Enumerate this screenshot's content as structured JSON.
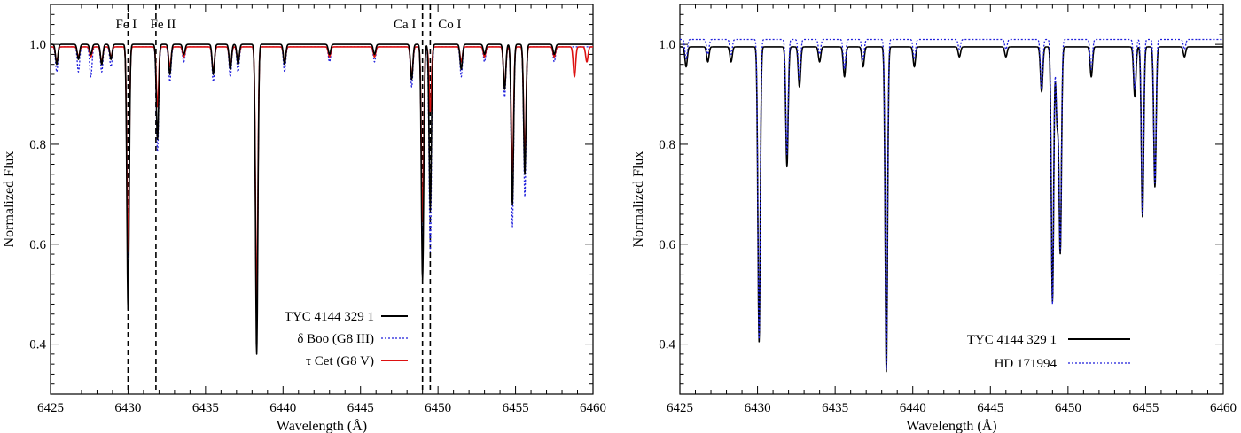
{
  "chart_data": [
    {
      "type": "line",
      "xlabel": "Wavelength (Å)",
      "ylabel": "Normalized Flux",
      "xlim": [
        6425,
        6460
      ],
      "ylim": [
        0.3,
        1.08
      ],
      "xticks": [
        6425,
        6430,
        6435,
        6440,
        6445,
        6450,
        6455,
        6460
      ],
      "yticks": [
        0.4,
        0.6,
        0.8,
        1.0
      ],
      "ytick_labels": [
        "0.4",
        "0.6",
        "0.8",
        "1.0"
      ],
      "line_markers": [
        {
          "x": 6430.0,
          "label": "Fe I"
        },
        {
          "x": 6431.8,
          "label": "Fe II"
        },
        {
          "x": 6449.0,
          "label": "Ca I"
        },
        {
          "x": 6449.5,
          "label": "Co I"
        }
      ],
      "series": [
        {
          "name": "TYC 4144 329 1",
          "color": "#000000",
          "style": "solid",
          "continuum": 1.0,
          "lines": [
            [
              6425.4,
              0.04
            ],
            [
              6426.8,
              0.03
            ],
            [
              6427.6,
              0.02
            ],
            [
              6428.3,
              0.04
            ],
            [
              6428.9,
              0.03
            ],
            [
              6430.0,
              0.53
            ],
            [
              6431.9,
              0.19
            ],
            [
              6432.7,
              0.06
            ],
            [
              6433.6,
              0.02
            ],
            [
              6435.5,
              0.06
            ],
            [
              6436.6,
              0.05
            ],
            [
              6437.1,
              0.04
            ],
            [
              6438.3,
              0.62
            ],
            [
              6440.1,
              0.04
            ],
            [
              6443.0,
              0.02
            ],
            [
              6445.9,
              0.02
            ],
            [
              6448.3,
              0.07
            ],
            [
              6449.0,
              0.47
            ],
            [
              6449.5,
              0.33
            ],
            [
              6451.5,
              0.05
            ],
            [
              6453.0,
              0.02
            ],
            [
              6454.3,
              0.09
            ],
            [
              6454.8,
              0.32
            ],
            [
              6455.6,
              0.26
            ],
            [
              6457.5,
              0.02
            ]
          ]
        },
        {
          "name": "δ Boo (G8 III)",
          "color": "#1f1fdb",
          "style": "dotted",
          "continuum": 0.995,
          "lines": [
            [
              6425.4,
              0.05
            ],
            [
              6426.8,
              0.05
            ],
            [
              6427.6,
              0.06
            ],
            [
              6428.3,
              0.05
            ],
            [
              6428.9,
              0.04
            ],
            [
              6430.0,
              0.43
            ],
            [
              6431.9,
              0.21
            ],
            [
              6432.7,
              0.07
            ],
            [
              6433.6,
              0.03
            ],
            [
              6435.5,
              0.07
            ],
            [
              6436.6,
              0.06
            ],
            [
              6437.1,
              0.05
            ],
            [
              6438.3,
              0.56
            ],
            [
              6440.1,
              0.05
            ],
            [
              6443.0,
              0.03
            ],
            [
              6445.9,
              0.03
            ],
            [
              6448.3,
              0.08
            ],
            [
              6449.0,
              0.41
            ],
            [
              6449.5,
              0.41
            ],
            [
              6451.5,
              0.06
            ],
            [
              6453.0,
              0.03
            ],
            [
              6454.3,
              0.1
            ],
            [
              6454.8,
              0.36
            ],
            [
              6455.6,
              0.3
            ],
            [
              6457.5,
              0.03
            ]
          ]
        },
        {
          "name": "τ Cet (G8 V)",
          "color": "#dd1111",
          "style": "solid",
          "continuum": 0.995,
          "lines": [
            [
              6425.4,
              0.03
            ],
            [
              6426.8,
              0.02
            ],
            [
              6427.6,
              0.02
            ],
            [
              6428.3,
              0.03
            ],
            [
              6428.9,
              0.02
            ],
            [
              6430.0,
              0.41
            ],
            [
              6431.9,
              0.12
            ],
            [
              6432.7,
              0.04
            ],
            [
              6433.6,
              0.02
            ],
            [
              6435.5,
              0.05
            ],
            [
              6436.6,
              0.04
            ],
            [
              6437.1,
              0.03
            ],
            [
              6438.3,
              0.52
            ],
            [
              6440.1,
              0.03
            ],
            [
              6443.0,
              0.02
            ],
            [
              6445.9,
              0.02
            ],
            [
              6448.3,
              0.06
            ],
            [
              6449.0,
              0.35
            ],
            [
              6449.5,
              0.13
            ],
            [
              6451.5,
              0.03
            ],
            [
              6453.0,
              0.02
            ],
            [
              6454.3,
              0.08
            ],
            [
              6454.8,
              0.25
            ],
            [
              6455.6,
              0.22
            ],
            [
              6457.5,
              0.02
            ],
            [
              6458.8,
              0.06
            ],
            [
              6459.6,
              0.03
            ]
          ]
        }
      ],
      "legend": {
        "position": "bottom-center",
        "entries": [
          "TYC 4144 329 1",
          "δ  Boo (G8 III)",
          "τ  Cet  (G8 V)"
        ]
      }
    },
    {
      "type": "line",
      "xlabel": "Wavelength (Å)",
      "ylabel": "Normalized Flux",
      "xlim": [
        6425,
        6460
      ],
      "ylim": [
        0.3,
        1.08
      ],
      "xticks": [
        6425,
        6430,
        6435,
        6440,
        6445,
        6450,
        6455,
        6460
      ],
      "yticks": [
        0.4,
        0.6,
        0.8,
        1.0
      ],
      "ytick_labels": [
        "0.4",
        "0.6",
        "0.8",
        "1.0"
      ],
      "line_markers": [],
      "series": [
        {
          "name": "TYC 4144 329 1",
          "color": "#000000",
          "style": "solid",
          "continuum": 0.995,
          "lines": [
            [
              6425.4,
              0.04
            ],
            [
              6426.8,
              0.03
            ],
            [
              6428.3,
              0.03
            ],
            [
              6430.1,
              0.59
            ],
            [
              6431.9,
              0.24
            ],
            [
              6432.7,
              0.08
            ],
            [
              6434.0,
              0.03
            ],
            [
              6435.6,
              0.06
            ],
            [
              6436.8,
              0.04
            ],
            [
              6438.3,
              0.65
            ],
            [
              6440.1,
              0.04
            ],
            [
              6443.0,
              0.02
            ],
            [
              6446.0,
              0.02
            ],
            [
              6448.3,
              0.09
            ],
            [
              6449.0,
              0.51
            ],
            [
              6449.3,
              0.15
            ],
            [
              6449.5,
              0.41
            ],
            [
              6451.5,
              0.06
            ],
            [
              6454.3,
              0.1
            ],
            [
              6454.8,
              0.34
            ],
            [
              6455.6,
              0.28
            ],
            [
              6457.5,
              0.02
            ]
          ]
        },
        {
          "name": "HD 171994",
          "color": "#1f1fdb",
          "style": "dotted",
          "continuum": 1.01,
          "lines": [
            [
              6425.4,
              0.04
            ],
            [
              6426.8,
              0.03
            ],
            [
              6428.3,
              0.03
            ],
            [
              6430.1,
              0.6
            ],
            [
              6431.9,
              0.23
            ],
            [
              6432.7,
              0.08
            ],
            [
              6434.0,
              0.03
            ],
            [
              6435.6,
              0.06
            ],
            [
              6436.8,
              0.04
            ],
            [
              6438.3,
              0.66
            ],
            [
              6440.1,
              0.04
            ],
            [
              6443.0,
              0.02
            ],
            [
              6446.0,
              0.02
            ],
            [
              6448.3,
              0.1
            ],
            [
              6449.0,
              0.53
            ],
            [
              6449.3,
              0.16
            ],
            [
              6449.5,
              0.42
            ],
            [
              6451.5,
              0.06
            ],
            [
              6454.3,
              0.1
            ],
            [
              6454.8,
              0.35
            ],
            [
              6455.6,
              0.29
            ],
            [
              6457.5,
              0.02
            ]
          ]
        }
      ],
      "legend": {
        "position": "bottom-center",
        "entries": [
          "TYC 4144 329 1",
          "HD 171994"
        ]
      }
    }
  ]
}
